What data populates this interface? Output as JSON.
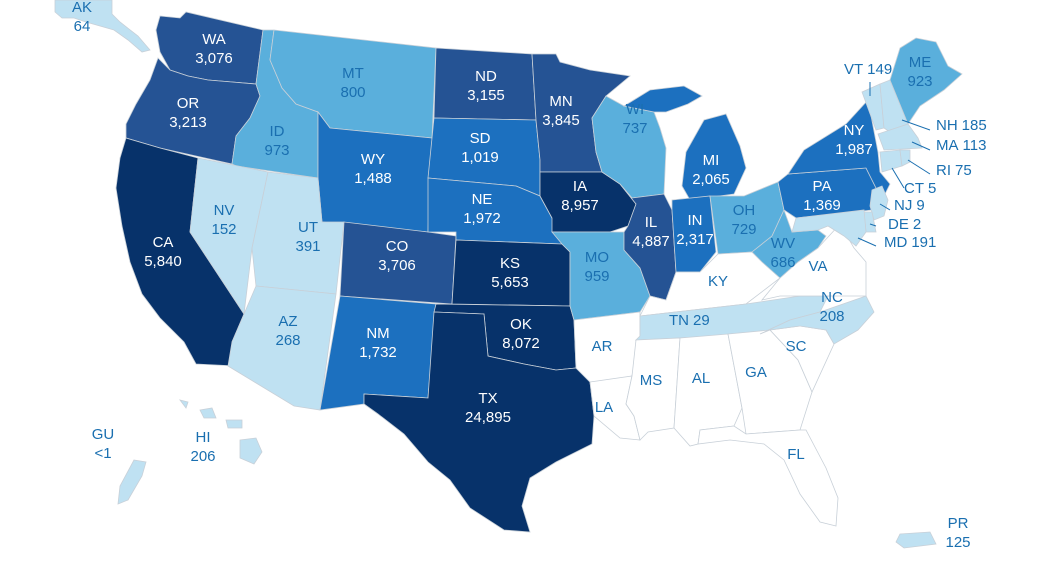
{
  "map": {
    "colors": {
      "none": "#ffffff",
      "l1": "#bfe1f2",
      "l2": "#5aafdc",
      "l3": "#1c70bf",
      "l4": "#255394",
      "l5": "#07326a",
      "label_dark": "#1a6fb0",
      "label_light": "#ffffff",
      "border": "#c8d0d8"
    },
    "regions": [
      {
        "code": "AK",
        "value": "64",
        "level": "l1"
      },
      {
        "code": "WA",
        "value": "3,076",
        "level": "l4"
      },
      {
        "code": "OR",
        "value": "3,213",
        "level": "l4"
      },
      {
        "code": "CA",
        "value": "5,840",
        "level": "l5"
      },
      {
        "code": "ID",
        "value": "973",
        "level": "l2"
      },
      {
        "code": "NV",
        "value": "152",
        "level": "l1"
      },
      {
        "code": "MT",
        "value": "800",
        "level": "l2"
      },
      {
        "code": "WY",
        "value": "1,488",
        "level": "l3"
      },
      {
        "code": "UT",
        "value": "391",
        "level": "l1"
      },
      {
        "code": "AZ",
        "value": "268",
        "level": "l1"
      },
      {
        "code": "CO",
        "value": "3,706",
        "level": "l4"
      },
      {
        "code": "NM",
        "value": "1,732",
        "level": "l3"
      },
      {
        "code": "ND",
        "value": "3,155",
        "level": "l4"
      },
      {
        "code": "SD",
        "value": "1,019",
        "level": "l3"
      },
      {
        "code": "NE",
        "value": "1,972",
        "level": "l3"
      },
      {
        "code": "KS",
        "value": "5,653",
        "level": "l5"
      },
      {
        "code": "OK",
        "value": "8,072",
        "level": "l5"
      },
      {
        "code": "TX",
        "value": "24,895",
        "level": "l5"
      },
      {
        "code": "MN",
        "value": "3,845",
        "level": "l4"
      },
      {
        "code": "IA",
        "value": "8,957",
        "level": "l5"
      },
      {
        "code": "MO",
        "value": "959",
        "level": "l2"
      },
      {
        "code": "AR",
        "value": "",
        "level": "none"
      },
      {
        "code": "LA",
        "value": "",
        "level": "none"
      },
      {
        "code": "WI",
        "value": "737",
        "level": "l2"
      },
      {
        "code": "IL",
        "value": "4,887",
        "level": "l4"
      },
      {
        "code": "MI",
        "value": "2,065",
        "level": "l3"
      },
      {
        "code": "IN",
        "value": "2,317",
        "level": "l3"
      },
      {
        "code": "OH",
        "value": "729",
        "level": "l2"
      },
      {
        "code": "KY",
        "value": "",
        "level": "none"
      },
      {
        "code": "TN",
        "value": "29",
        "level": "l1"
      },
      {
        "code": "MS",
        "value": "",
        "level": "none"
      },
      {
        "code": "AL",
        "value": "",
        "level": "none"
      },
      {
        "code": "GA",
        "value": "",
        "level": "none"
      },
      {
        "code": "FL",
        "value": "",
        "level": "none"
      },
      {
        "code": "SC",
        "value": "",
        "level": "none"
      },
      {
        "code": "NC",
        "value": "208",
        "level": "l1"
      },
      {
        "code": "VA",
        "value": "",
        "level": "none"
      },
      {
        "code": "WV",
        "value": "686",
        "level": "l2"
      },
      {
        "code": "PA",
        "value": "1,369",
        "level": "l3"
      },
      {
        "code": "NY",
        "value": "1,987",
        "level": "l3"
      },
      {
        "code": "VT",
        "value": "149",
        "level": "l1"
      },
      {
        "code": "ME",
        "value": "923",
        "level": "l2"
      },
      {
        "code": "NH",
        "value": "185",
        "level": "l1"
      },
      {
        "code": "MA",
        "value": "113",
        "level": "l1"
      },
      {
        "code": "RI",
        "value": "75",
        "level": "l1"
      },
      {
        "code": "CT",
        "value": "5",
        "level": "l1"
      },
      {
        "code": "NJ",
        "value": "9",
        "level": "l1"
      },
      {
        "code": "DE",
        "value": "2",
        "level": "l1"
      },
      {
        "code": "MD",
        "value": "191",
        "level": "l1"
      },
      {
        "code": "HI",
        "value": "206",
        "level": "l1"
      },
      {
        "code": "GU",
        "value": "<1",
        "level": "l1"
      },
      {
        "code": "PR",
        "value": "125",
        "level": "l1"
      }
    ]
  }
}
